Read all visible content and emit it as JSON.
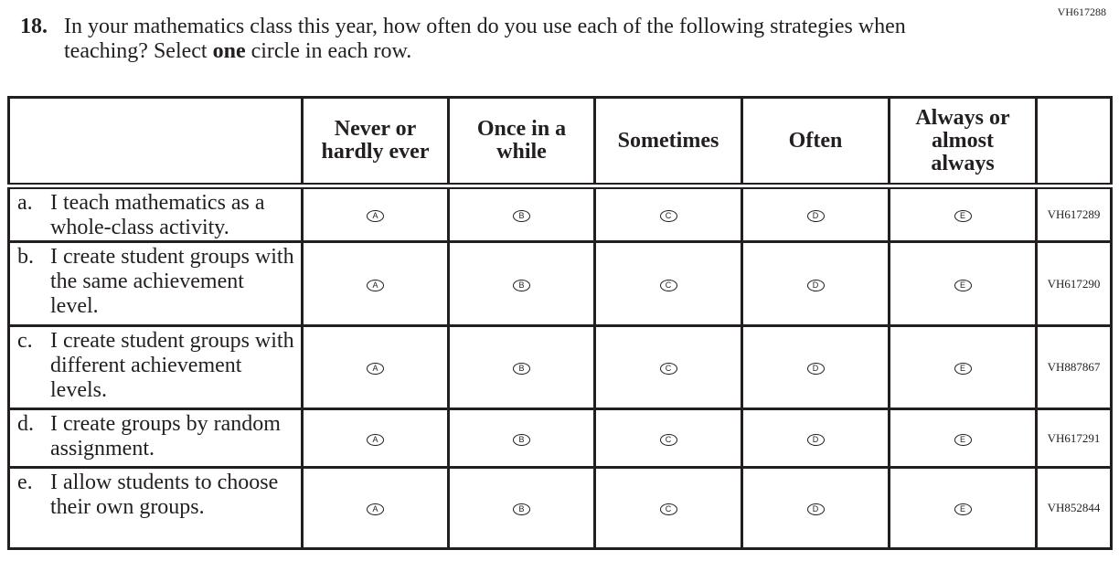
{
  "question_code": "VH617288",
  "question": {
    "number": "18.",
    "text_before": "In your mathematics class this year, how often do you use each of the following strategies when teaching? Select ",
    "text_bold": "one",
    "text_after": " circle in each row."
  },
  "columns": [
    "Never or hardly ever",
    "Once in a while",
    "Sometimes",
    "Often",
    "Always or almost always"
  ],
  "options": [
    "A",
    "B",
    "C",
    "D",
    "E"
  ],
  "rows": [
    {
      "letter": "a.",
      "text": "I teach mathematics as a whole-class activity.",
      "code": "VH617289"
    },
    {
      "letter": "b.",
      "text": "I create student groups with the same achievement level.",
      "code": "VH617290"
    },
    {
      "letter": "c.",
      "text": "I create student groups with different achievement levels.",
      "code": "VH887867"
    },
    {
      "letter": "d.",
      "text": "I create groups by random assignment.",
      "code": "VH617291"
    },
    {
      "letter": "e.",
      "text": "I allow students to choose their own groups.",
      "code": "VH852844"
    }
  ]
}
